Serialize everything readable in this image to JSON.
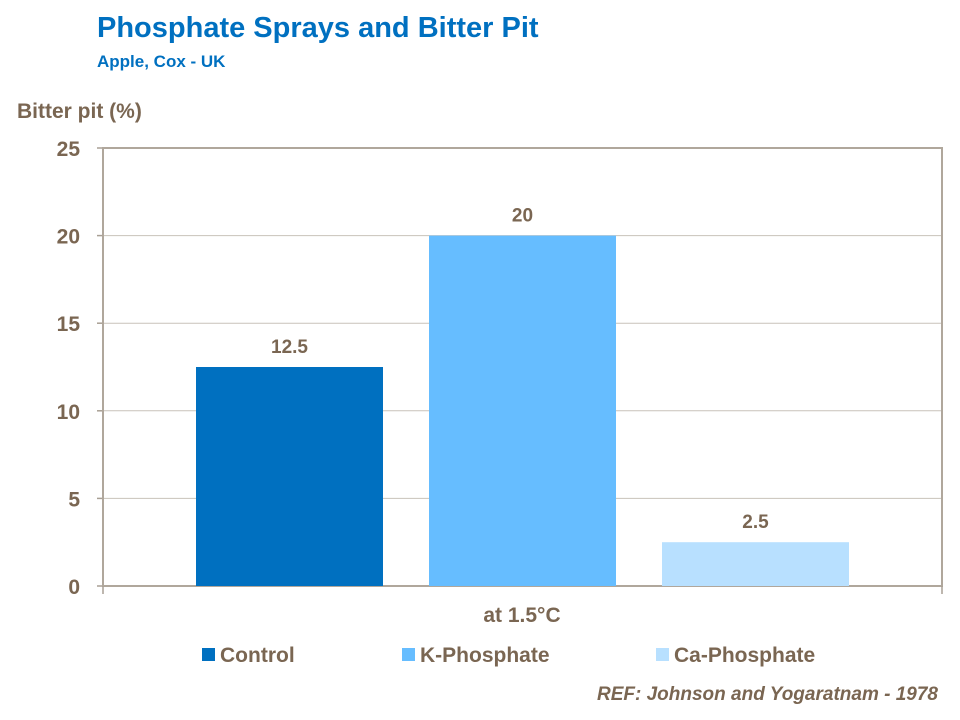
{
  "chart_data": {
    "type": "bar",
    "title": "Phosphate Sprays and Bitter Pit",
    "subtitle": "Apple, Cox - UK",
    "ylabel": "Bitter pit (%)",
    "xlabel": "at 1.5°C",
    "categories": [
      "at 1.5°C"
    ],
    "series": [
      {
        "name": "Control",
        "values": [
          12.5
        ],
        "label": "12.5",
        "color": "#0070c0"
      },
      {
        "name": "K-Phosphate",
        "values": [
          20
        ],
        "label": "20",
        "color": "#66bdff"
      },
      {
        "name": "Ca-Phosphate",
        "values": [
          2.5
        ],
        "label": "2.5",
        "color": "#b8e0ff"
      }
    ],
    "ylim": [
      0,
      25
    ],
    "yticks": [
      "0",
      "5",
      "10",
      "15",
      "20",
      "25"
    ],
    "grid": true,
    "legend": "bottom",
    "note": "REF: Johnson and Yogaratnam - 1978"
  }
}
